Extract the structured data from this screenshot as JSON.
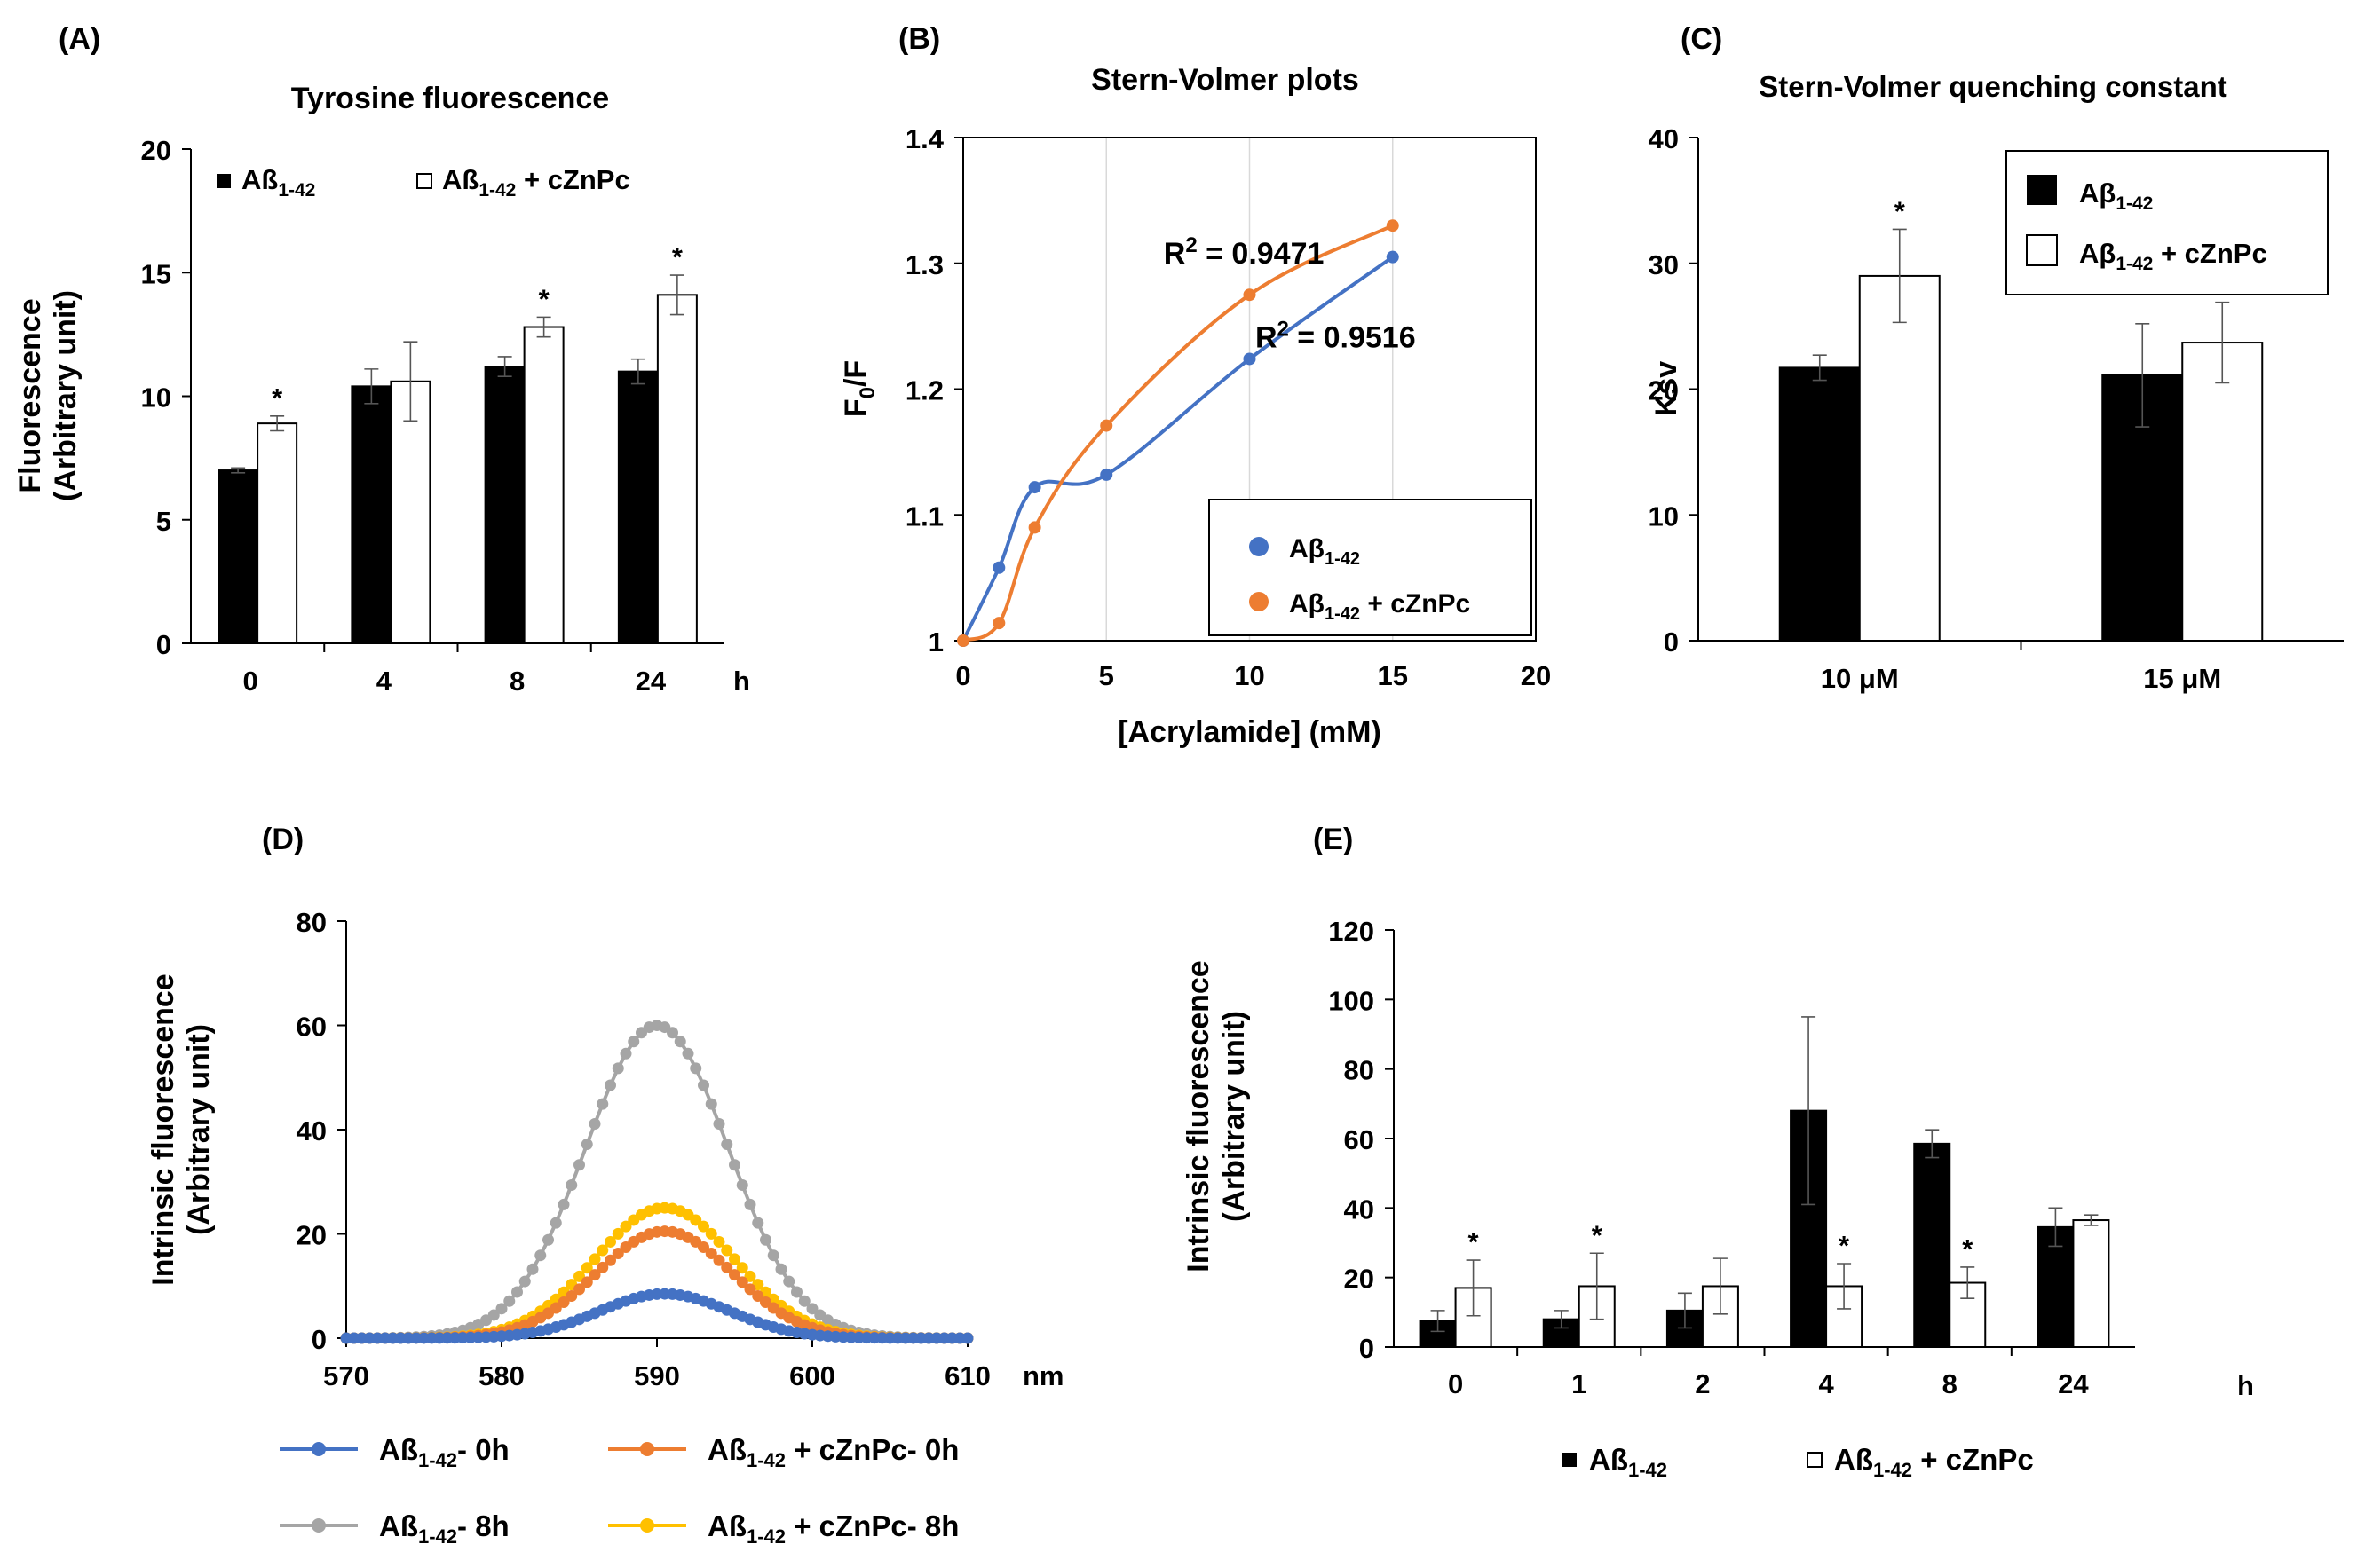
{
  "chart_data": [
    {
      "id": "A",
      "panel_label": "(A)",
      "type": "bar",
      "title": "Tyrosine fluorescence",
      "ylabel_lines": [
        "Fluorescence",
        "(Arbitrary unit)"
      ],
      "xlabel": "",
      "x_unit": "h",
      "categories": [
        "0",
        "4",
        "8",
        "24"
      ],
      "ylim": [
        0,
        20
      ],
      "yticks": [
        "0",
        "5",
        "10",
        "15",
        "20"
      ],
      "series": [
        {
          "name": "Aß1-42",
          "label_main": "Aß",
          "label_sub": "1-42",
          "label_suffix": "",
          "fill": "#000000",
          "values": [
            7.0,
            10.4,
            11.2,
            11.0
          ],
          "errors": [
            0.1,
            0.7,
            0.4,
            0.5
          ],
          "sig": [
            "",
            "",
            "",
            ""
          ]
        },
        {
          "name": "Aß1-42 + cZnPc",
          "label_main": "Aß",
          "label_sub": "1-42",
          "label_suffix": " + cZnPc",
          "fill": "#ffffff",
          "values": [
            8.9,
            10.6,
            12.8,
            14.1
          ],
          "errors": [
            0.3,
            1.6,
            0.4,
            0.8
          ],
          "sig": [
            "*",
            "",
            "*",
            "*"
          ]
        }
      ],
      "sig_mark": "*",
      "legend_position": "top"
    },
    {
      "id": "B",
      "panel_label": "(B)",
      "type": "line",
      "title": "Stern-Volmer plots",
      "ylabel_main": "F",
      "ylabel_sub": "0",
      "ylabel_rest": "/F",
      "xlabel": "[Acrylamide] (mM)",
      "xlim": [
        0,
        20
      ],
      "ylim": [
        1.0,
        1.4
      ],
      "xticks": [
        "0",
        "5",
        "10",
        "15",
        "20"
      ],
      "yticks": [
        "1",
        "1.1",
        "1.2",
        "1.3",
        "1.4"
      ],
      "series": [
        {
          "name": "Aβ1-42",
          "label_main": "Aβ",
          "label_sub": "1-42",
          "label_suffix": "",
          "color": "#4472C4",
          "x": [
            0,
            1.25,
            2.5,
            5,
            10,
            15
          ],
          "y": [
            1.0,
            1.058,
            1.122,
            1.132,
            1.224,
            1.305
          ]
        },
        {
          "name": "Aβ1-42 + cZnPc",
          "label_main": "Aβ",
          "label_sub": "1-42",
          "label_suffix": " + cZnPc",
          "color": "#ED7D31",
          "x": [
            0,
            1.25,
            2.5,
            5,
            10,
            15
          ],
          "y": [
            1.0,
            1.014,
            1.09,
            1.171,
            1.275,
            1.33
          ]
        }
      ],
      "annotations": [
        {
          "main": "R",
          "sup": "2",
          "rest": " = 0.9471",
          "at_x": 7,
          "at_y": 1.3
        },
        {
          "main": "R",
          "sup": "2",
          "rest": " = 0.9516",
          "at_x": 10.2,
          "at_y": 1.233
        }
      ],
      "legend_position": "bottom-right"
    },
    {
      "id": "C",
      "panel_label": "(C)",
      "type": "bar",
      "title": "Stern-Volmer quenching constant",
      "ylabel": "Ksv",
      "xlabel": "",
      "categories": [
        "10 μM",
        "15 μM"
      ],
      "ylim": [
        0,
        40
      ],
      "yticks": [
        "0",
        "10",
        "20",
        "30",
        "40"
      ],
      "series": [
        {
          "name": "Aβ1-42",
          "label_main": "Aβ",
          "label_sub": "1-42",
          "label_suffix": "",
          "fill": "#000000",
          "values": [
            21.7,
            21.1
          ],
          "errors": [
            1.0,
            4.1
          ],
          "sig": [
            "",
            ""
          ]
        },
        {
          "name": "Aβ1-42 + cZnPc",
          "label_main": "Aβ",
          "label_sub": "1-42",
          "label_suffix": " + cZnPc",
          "fill": "#ffffff",
          "values": [
            29.0,
            23.7
          ],
          "errors": [
            3.7,
            3.2
          ],
          "sig": [
            "*",
            ""
          ]
        }
      ],
      "sig_mark": "*",
      "legend_position": "top-right"
    },
    {
      "id": "D",
      "panel_label": "(D)",
      "type": "line",
      "title": "",
      "ylabel_lines": [
        "Intrinsic fluorescence",
        "(Arbitrary unit)"
      ],
      "xlabel": "",
      "x_unit": "nm",
      "xlim": [
        570,
        610
      ],
      "ylim": [
        0,
        80
      ],
      "xticks": [
        "570",
        "580",
        "590",
        "600",
        "610"
      ],
      "yticks": [
        "0",
        "20",
        "40",
        "60",
        "80"
      ],
      "x_step": 0.5,
      "series": [
        {
          "name": "Aß1-42- 0h",
          "label_main": "Aß",
          "label_sub": "1-42",
          "label_suffix": "- 0h",
          "color": "#4472C4",
          "peak_x": 590.5,
          "peak_y": 8.5,
          "sigma": 4.2
        },
        {
          "name": "Aß1-42 + cZnPc- 0h",
          "label_main": "Aß",
          "label_sub": "1-42",
          "label_suffix": " + cZnPc- 0h",
          "color": "#ED7D31",
          "peak_x": 590.5,
          "peak_y": 20.5,
          "sigma": 4.4
        },
        {
          "name": "Aß1-42- 8h",
          "label_main": "Aß",
          "label_sub": "1-42",
          "label_suffix": "- 8h",
          "color": "#A5A5A5",
          "peak_x": 590.0,
          "peak_y": 60.0,
          "sigma": 4.6
        },
        {
          "name": "Aß1-42 + cZnPc- 8h",
          "label_main": "Aß",
          "label_sub": "1-42",
          "label_suffix": " + cZnPc- 8h",
          "color": "#FFC000",
          "peak_x": 590.5,
          "peak_y": 25.0,
          "sigma": 4.5
        }
      ],
      "legend_position": "bottom"
    },
    {
      "id": "E",
      "panel_label": "(E)",
      "type": "bar",
      "title": "",
      "ylabel_lines": [
        "Intrinsic fluorescence",
        "(Arbitrary unit)"
      ],
      "xlabel": "",
      "x_unit": "h",
      "categories": [
        "0",
        "1",
        "2",
        "4",
        "8",
        "24"
      ],
      "ylim": [
        0,
        120
      ],
      "yticks": [
        "0",
        "20",
        "40",
        "60",
        "80",
        "100",
        "120"
      ],
      "series": [
        {
          "name": "Aß1-42",
          "label_main": "Aß",
          "label_sub": "1-42",
          "label_suffix": "",
          "fill": "#000000",
          "values": [
            7.5,
            8.0,
            10.5,
            68.0,
            58.5,
            34.5
          ],
          "errors": [
            3.0,
            2.5,
            5.0,
            27.0,
            4.0,
            5.5
          ],
          "sig": [
            "",
            "",
            "",
            "",
            "",
            ""
          ]
        },
        {
          "name": "Aß1-42 + cZnPc",
          "label_main": "Aß",
          "label_sub": "1-42",
          "label_suffix": " + cZnPc",
          "fill": "#ffffff",
          "values": [
            17.0,
            17.5,
            17.5,
            17.5,
            18.5,
            36.5
          ],
          "errors": [
            8.0,
            9.5,
            8.0,
            6.5,
            4.5,
            1.5
          ],
          "sig": [
            "*",
            "*",
            "",
            "*",
            "*",
            ""
          ]
        }
      ],
      "sig_mark": "*",
      "legend_position": "bottom"
    }
  ]
}
